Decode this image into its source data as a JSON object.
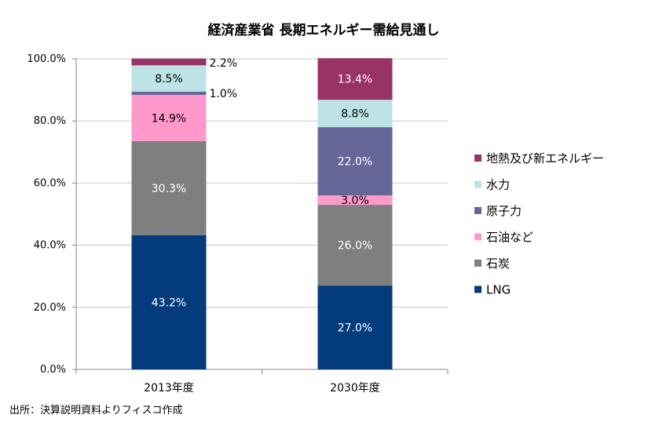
{
  "chart_data": {
    "type": "bar",
    "stacked": true,
    "title": "経済産業省 長期エネルギー需給見通し",
    "xlabel": "",
    "ylabel": "",
    "ylim": [
      0,
      100
    ],
    "ytick_values": [
      0,
      20,
      40,
      60,
      80,
      100
    ],
    "ytick_labels": [
      "0.0%",
      "20.0%",
      "40.0%",
      "60.0%",
      "80.0%",
      "100.0%"
    ],
    "categories": [
      "2013年度",
      "2030年度"
    ],
    "series": [
      {
        "name": "LNG",
        "color": "#033b7c",
        "values": [
          43.2,
          27.0
        ],
        "labels": [
          "43.2%",
          "27.0%"
        ]
      },
      {
        "name": "石炭",
        "color": "#7f7f7f",
        "values": [
          30.3,
          26.0
        ],
        "labels": [
          "30.3%",
          "26.0%"
        ]
      },
      {
        "name": "石油など",
        "color": "#ff99cc",
        "values": [
          14.9,
          3.0
        ],
        "labels": [
          "14.9%",
          "3.0%"
        ]
      },
      {
        "name": "原子力",
        "color": "#666699",
        "values": [
          1.0,
          22.0
        ],
        "labels": [
          "1.0%",
          "22.0%"
        ]
      },
      {
        "name": "水力",
        "color": "#bde3e6",
        "values": [
          8.5,
          8.8
        ],
        "labels": [
          "8.5%",
          "8.8%"
        ]
      },
      {
        "name": "地熱及び新エネルギー",
        "color": "#993366",
        "values": [
          2.2,
          13.4
        ],
        "labels": [
          "2.2%",
          "13.4%"
        ]
      }
    ],
    "legend_position": "right",
    "grid": true
  },
  "source_note": "出所：決算説明資料よりフィスコ作成"
}
